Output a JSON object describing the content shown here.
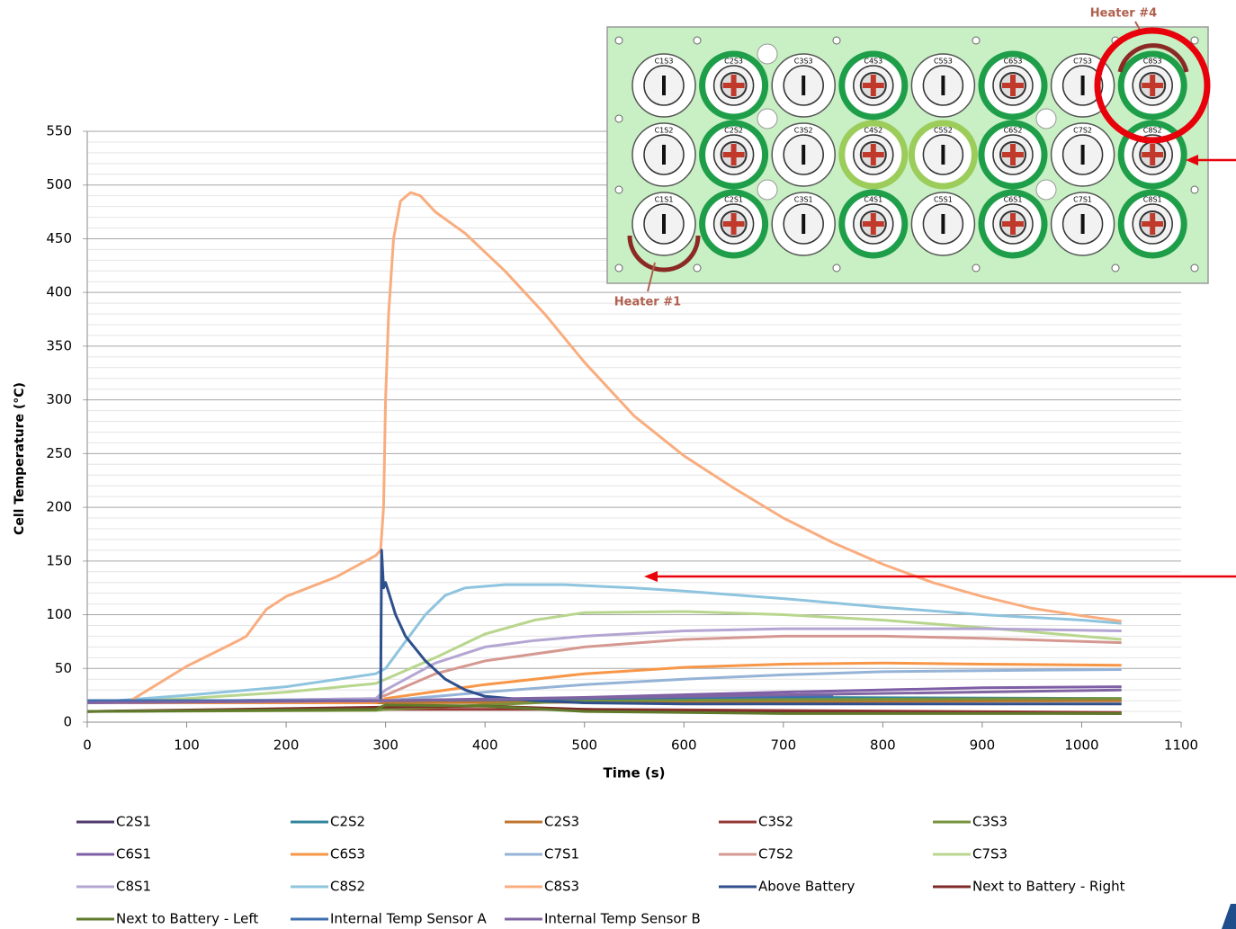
{
  "chart_data": {
    "type": "line",
    "y_label": "Cell Temperature (°C)",
    "x_label": "Time (s)",
    "xlim": [
      0,
      1100
    ],
    "xticks": [
      0,
      100,
      200,
      300,
      400,
      500,
      600,
      700,
      800,
      900,
      1000,
      1100
    ],
    "ylim": [
      0,
      550
    ],
    "yticks": [
      0,
      50,
      100,
      150,
      200,
      250,
      300,
      350,
      400,
      450,
      500,
      550
    ],
    "y_minor_ticks": [
      10,
      20,
      30,
      40,
      60,
      70,
      80,
      90,
      110,
      120,
      130,
      140,
      160,
      170,
      180,
      190,
      210,
      220,
      230,
      240,
      260,
      270,
      280,
      290,
      310,
      320,
      330,
      340,
      360,
      370,
      380,
      390,
      410,
      420,
      430,
      440,
      460,
      470,
      480,
      490,
      510,
      520,
      530,
      540
    ],
    "grid": true,
    "series": [
      {
        "name": "C2S1",
        "color": "#4f3a6a",
        "x": [
          0,
          300,
          600,
          1040
        ],
        "values": [
          18,
          19,
          20,
          20
        ]
      },
      {
        "name": "C2S2",
        "color": "#31859c",
        "x": [
          0,
          300,
          700,
          1040
        ],
        "values": [
          18,
          20,
          23,
          22
        ]
      },
      {
        "name": "C2S3",
        "color": "#c0762e",
        "x": [
          0,
          300,
          1040
        ],
        "values": [
          18,
          18,
          20
        ]
      },
      {
        "name": "C3S2",
        "color": "#953735",
        "x": [
          0,
          300,
          500,
          1040
        ],
        "values": [
          10,
          12,
          12,
          9
        ]
      },
      {
        "name": "C3S3",
        "color": "#76933c",
        "x": [
          0,
          290,
          300,
          400,
          500,
          700,
          1040
        ],
        "values": [
          10,
          11,
          12,
          16,
          20,
          21,
          22
        ]
      },
      {
        "name": "C6S1",
        "color": "#7e5ea6",
        "x": [
          0,
          300,
          500,
          700,
          900,
          1040
        ],
        "values": [
          18,
          20,
          23,
          28,
          32,
          33
        ]
      },
      {
        "name": "C6S3",
        "color": "#f79646",
        "x": [
          0,
          290,
          300,
          400,
          500,
          600,
          700,
          800,
          900,
          1040
        ],
        "values": [
          18,
          18,
          22,
          35,
          45,
          51,
          54,
          55,
          54,
          53
        ]
      },
      {
        "name": "C7S1",
        "color": "#95b3d7",
        "x": [
          0,
          300,
          400,
          500,
          600,
          700,
          800,
          900,
          1040
        ],
        "values": [
          18,
          20,
          28,
          35,
          40,
          44,
          47,
          48,
          49
        ]
      },
      {
        "name": "C7S2",
        "color": "#d59891",
        "x": [
          0,
          290,
          300,
          350,
          400,
          500,
          600,
          700,
          800,
          900,
          1040
        ],
        "values": [
          18,
          22,
          25,
          45,
          57,
          70,
          77,
          80,
          80,
          78,
          74
        ]
      },
      {
        "name": "C7S3",
        "color": "#b8d68e",
        "x": [
          0,
          100,
          200,
          290,
          300,
          350,
          400,
          450,
          500,
          600,
          700,
          800,
          900,
          1000,
          1040
        ],
        "values": [
          18,
          22,
          28,
          36,
          40,
          60,
          82,
          95,
          102,
          103,
          100,
          95,
          88,
          80,
          77
        ]
      },
      {
        "name": "C8S1",
        "color": "#b4a5d2",
        "x": [
          0,
          290,
          300,
          350,
          400,
          450,
          500,
          600,
          700,
          800,
          900,
          1040
        ],
        "values": [
          18,
          22,
          30,
          55,
          70,
          76,
          80,
          85,
          87,
          87,
          87,
          85
        ]
      },
      {
        "name": "C8S2",
        "color": "#8ec4de",
        "x": [
          0,
          100,
          200,
          290,
          300,
          320,
          340,
          360,
          380,
          420,
          480,
          550,
          600,
          700,
          800,
          900,
          1000,
          1040
        ],
        "values": [
          18,
          25,
          33,
          45,
          50,
          75,
          100,
          118,
          125,
          128,
          128,
          125,
          122,
          115,
          107,
          100,
          95,
          92
        ]
      },
      {
        "name": "C8S3",
        "color": "#f9ad7f",
        "x": [
          0,
          40,
          100,
          150,
          160,
          180,
          200,
          250,
          290,
          295,
          298,
          300,
          303,
          308,
          315,
          325,
          335,
          350,
          380,
          420,
          460,
          500,
          550,
          600,
          650,
          700,
          750,
          800,
          850,
          900,
          950,
          1000,
          1040
        ],
        "values": [
          18,
          18,
          52,
          75,
          80,
          105,
          117,
          135,
          155,
          160,
          200,
          300,
          380,
          450,
          485,
          493,
          490,
          475,
          455,
          420,
          380,
          335,
          285,
          248,
          218,
          190,
          167,
          147,
          130,
          117,
          106,
          99,
          94
        ]
      },
      {
        "name": "Above Battery",
        "color": "#2e4e8c",
        "x": [
          0,
          295,
          296,
          298,
          300,
          305,
          310,
          320,
          340,
          360,
          380,
          400,
          450,
          500,
          600,
          1040
        ],
        "values": [
          20,
          20,
          160,
          125,
          130,
          115,
          100,
          80,
          57,
          40,
          30,
          24,
          20,
          18,
          17,
          17
        ]
      },
      {
        "name": "Next to Battery - Right",
        "color": "#7f2a2a",
        "x": [
          0,
          300,
          400,
          500,
          600,
          1040
        ],
        "values": [
          10,
          14,
          15,
          12,
          10,
          8
        ]
      },
      {
        "name": "Next to Battery - Left",
        "color": "#5e7a2a",
        "x": [
          0,
          290,
          300,
          400,
          500,
          700,
          1040
        ],
        "values": [
          10,
          12,
          16,
          15,
          10,
          8,
          8
        ]
      },
      {
        "name": "Internal Temp Sensor A",
        "color": "#3e6fb0",
        "x": [
          0,
          290,
          300,
          500,
          750
        ],
        "values": [
          20,
          20,
          20,
          22,
          24
        ]
      },
      {
        "name": "Internal Temp Sensor B",
        "color": "#8064a2",
        "x": [
          0,
          300,
          600,
          1040
        ],
        "values": [
          18,
          20,
          24,
          30
        ]
      }
    ]
  },
  "inset": {
    "heater_top": "Heater #4",
    "heater_bottom": "Heater #1",
    "cells": [
      "C1S3",
      "C2S3",
      "C3S3",
      "C4S3",
      "C5S3",
      "C6S3",
      "C7S3",
      "C8S3",
      "C1S2",
      "C2S2",
      "C3S2",
      "C4S2",
      "C5S2",
      "C6S2",
      "C7S2",
      "C8S2",
      "C1S1",
      "C2S1",
      "C3S1",
      "C4S1",
      "C5S1",
      "C6S1",
      "C7S1",
      "C8S1"
    ]
  }
}
